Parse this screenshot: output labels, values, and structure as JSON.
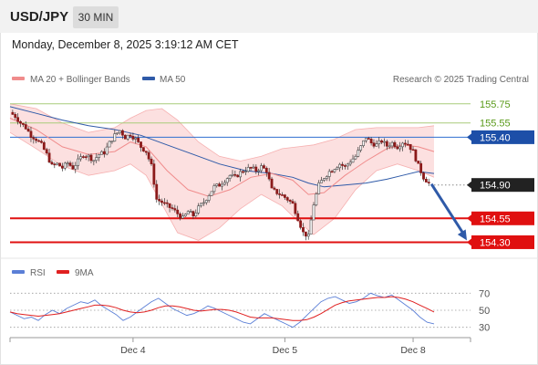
{
  "header": {
    "pair": "USD/JPY",
    "timeframe": "30 MIN"
  },
  "datetime": "Monday, December 8, 2025 3:19:12 AM CET",
  "legend": {
    "ma20": {
      "label": "MA 20 + Bollinger Bands",
      "color": "#f08c8c"
    },
    "ma50": {
      "label": "MA 50",
      "color": "#2f5aa8"
    }
  },
  "credit": "Research © 2025 Trading Central",
  "rsi_legend": {
    "rsi": {
      "label": "RSI",
      "color": "#5b7fd6"
    },
    "ma9": {
      "label": "9MA",
      "color": "#e02020"
    }
  },
  "chart_data": [
    {
      "type": "candlestick",
      "ylim": [
        154.18,
        155.92
      ],
      "x_ticks": [
        "Dec 4",
        "Dec 5",
        "Dec 8"
      ],
      "levels": [
        {
          "label": "155.75",
          "value": 155.75,
          "color": "#a8cc7a",
          "text_color": "#5a9a1a",
          "boxed": false
        },
        {
          "label": "155.55",
          "value": 155.55,
          "color": "#a8cc7a",
          "text_color": "#5a9a1a",
          "boxed": false
        },
        {
          "label": "155.40",
          "value": 155.4,
          "color": "#2f6fd0",
          "text_color": "#ffffff",
          "boxed": true,
          "box_color": "#1d4fa8"
        },
        {
          "label": "154.90",
          "value": 154.9,
          "color": "#888888",
          "text_color": "#ffffff",
          "boxed": true,
          "box_color": "#222222",
          "dotted": true
        },
        {
          "label": "154.55",
          "value": 154.55,
          "color": "#e01010",
          "text_color": "#ffffff",
          "boxed": true,
          "box_color": "#e01010"
        },
        {
          "label": "154.30",
          "value": 154.3,
          "color": "#e01010",
          "text_color": "#ffffff",
          "boxed": true,
          "box_color": "#e01010"
        }
      ],
      "last_price": 154.9,
      "forecast_arrow": {
        "from": 154.91,
        "to": 154.32,
        "color": "#2f5aa8"
      },
      "close_path": [
        [
          0,
          155.66
        ],
        [
          2,
          155.62
        ],
        [
          4,
          155.55
        ],
        [
          6,
          155.5
        ],
        [
          8,
          155.42
        ],
        [
          10,
          155.38
        ],
        [
          12,
          155.32
        ],
        [
          14,
          155.22
        ],
        [
          16,
          155.1
        ],
        [
          18,
          155.12
        ],
        [
          20,
          155.08
        ],
        [
          22,
          155.13
        ],
        [
          24,
          155.08
        ],
        [
          26,
          155.15
        ],
        [
          28,
          155.22
        ],
        [
          30,
          155.2
        ],
        [
          32,
          155.16
        ],
        [
          34,
          155.22
        ],
        [
          36,
          155.24
        ],
        [
          38,
          155.34
        ],
        [
          40,
          155.42
        ],
        [
          42,
          155.47
        ],
        [
          44,
          155.4
        ],
        [
          46,
          155.43
        ],
        [
          48,
          155.38
        ],
        [
          50,
          155.3
        ],
        [
          52,
          155.25
        ],
        [
          54,
          155.1
        ],
        [
          56,
          154.75
        ],
        [
          58,
          154.72
        ],
        [
          60,
          154.68
        ],
        [
          62,
          154.65
        ],
        [
          64,
          154.6
        ],
        [
          66,
          154.55
        ],
        [
          68,
          154.62
        ],
        [
          70,
          154.58
        ],
        [
          72,
          154.66
        ],
        [
          74,
          154.72
        ],
        [
          76,
          154.8
        ],
        [
          78,
          154.88
        ],
        [
          80,
          154.9
        ],
        [
          82,
          154.95
        ],
        [
          84,
          155.0
        ],
        [
          86,
          154.98
        ],
        [
          88,
          155.03
        ],
        [
          90,
          155.06
        ],
        [
          92,
          155.08
        ],
        [
          94,
          155.05
        ],
        [
          96,
          155.09
        ],
        [
          98,
          155.05
        ],
        [
          100,
          154.85
        ],
        [
          102,
          154.82
        ],
        [
          104,
          154.79
        ],
        [
          106,
          154.75
        ],
        [
          108,
          154.7
        ],
        [
          110,
          154.55
        ],
        [
          112,
          154.4
        ],
        [
          114,
          154.36
        ],
        [
          116,
          154.7
        ],
        [
          118,
          154.9
        ],
        [
          120,
          154.98
        ],
        [
          122,
          155.04
        ],
        [
          124,
          155.08
        ],
        [
          126,
          155.12
        ],
        [
          128,
          155.09
        ],
        [
          130,
          155.15
        ],
        [
          132,
          155.2
        ],
        [
          134,
          155.3
        ],
        [
          136,
          155.4
        ],
        [
          138,
          155.34
        ],
        [
          140,
          155.32
        ],
        [
          142,
          155.36
        ],
        [
          144,
          155.31
        ],
        [
          146,
          155.34
        ],
        [
          148,
          155.3
        ],
        [
          150,
          155.35
        ],
        [
          152,
          155.33
        ],
        [
          154,
          155.25
        ],
        [
          156,
          155.1
        ],
        [
          158,
          154.98
        ],
        [
          160,
          154.92
        ]
      ],
      "ma20_path": [
        [
          0,
          155.6
        ],
        [
          10,
          155.48
        ],
        [
          20,
          155.3
        ],
        [
          30,
          155.22
        ],
        [
          40,
          155.25
        ],
        [
          46,
          155.35
        ],
        [
          52,
          155.3
        ],
        [
          60,
          155.05
        ],
        [
          68,
          154.85
        ],
        [
          76,
          154.78
        ],
        [
          84,
          154.85
        ],
        [
          92,
          154.98
        ],
        [
          100,
          155.02
        ],
        [
          108,
          154.95
        ],
        [
          114,
          154.8
        ],
        [
          120,
          154.82
        ],
        [
          128,
          155.0
        ],
        [
          136,
          155.15
        ],
        [
          144,
          155.28
        ],
        [
          150,
          155.32
        ],
        [
          156,
          155.3
        ],
        [
          162,
          155.25
        ]
      ],
      "bb_upper_path": [
        [
          0,
          155.75
        ],
        [
          10,
          155.7
        ],
        [
          20,
          155.55
        ],
        [
          30,
          155.45
        ],
        [
          40,
          155.5
        ],
        [
          46,
          155.6
        ],
        [
          52,
          155.68
        ],
        [
          58,
          155.7
        ],
        [
          64,
          155.58
        ],
        [
          72,
          155.35
        ],
        [
          80,
          155.2
        ],
        [
          88,
          155.15
        ],
        [
          96,
          155.2
        ],
        [
          104,
          155.28
        ],
        [
          110,
          155.3
        ],
        [
          116,
          155.32
        ],
        [
          124,
          155.38
        ],
        [
          132,
          155.48
        ],
        [
          140,
          155.5
        ],
        [
          148,
          155.5
        ],
        [
          156,
          155.5
        ],
        [
          162,
          155.52
        ]
      ],
      "bb_lower_path": [
        [
          0,
          155.45
        ],
        [
          10,
          155.28
        ],
        [
          20,
          155.1
        ],
        [
          30,
          155.0
        ],
        [
          40,
          155.05
        ],
        [
          46,
          155.12
        ],
        [
          52,
          155.0
        ],
        [
          58,
          154.7
        ],
        [
          64,
          154.4
        ],
        [
          72,
          154.32
        ],
        [
          80,
          154.45
        ],
        [
          88,
          154.65
        ],
        [
          96,
          154.8
        ],
        [
          104,
          154.68
        ],
        [
          110,
          154.52
        ],
        [
          116,
          154.38
        ],
        [
          124,
          154.55
        ],
        [
          132,
          154.85
        ],
        [
          140,
          155.05
        ],
        [
          148,
          155.12
        ],
        [
          156,
          155.05
        ],
        [
          162,
          154.98
        ]
      ],
      "ma50_path": [
        [
          0,
          155.72
        ],
        [
          10,
          155.65
        ],
        [
          20,
          155.58
        ],
        [
          30,
          155.52
        ],
        [
          40,
          155.48
        ],
        [
          50,
          155.42
        ],
        [
          60,
          155.32
        ],
        [
          70,
          155.22
        ],
        [
          80,
          155.12
        ],
        [
          90,
          155.05
        ],
        [
          100,
          155.02
        ],
        [
          108,
          154.98
        ],
        [
          114,
          154.92
        ],
        [
          120,
          154.88
        ],
        [
          128,
          154.9
        ],
        [
          136,
          154.92
        ],
        [
          144,
          154.96
        ],
        [
          150,
          155.0
        ],
        [
          156,
          155.04
        ],
        [
          162,
          155.02
        ]
      ]
    },
    {
      "type": "line",
      "title": "",
      "ylim": [
        20,
        80
      ],
      "y_ticks": [
        70,
        50,
        30
      ],
      "series": [
        {
          "name": "RSI",
          "values": [
            48,
            44,
            40,
            42,
            38,
            45,
            50,
            46,
            52,
            56,
            60,
            58,
            62,
            55,
            50,
            45,
            38,
            42,
            48,
            54,
            60,
            64,
            58,
            52,
            48,
            44,
            46,
            50,
            55,
            52,
            48,
            44,
            40,
            36,
            34,
            40,
            46,
            42,
            38,
            34,
            30,
            36,
            44,
            52,
            60,
            64,
            66,
            62,
            58,
            60,
            64,
            70,
            67,
            65,
            68,
            62,
            56,
            50,
            42,
            36,
            34
          ]
        },
        {
          "name": "9MA",
          "values": [
            48,
            46,
            45,
            44,
            43,
            44,
            45,
            46,
            48,
            50,
            52,
            54,
            56,
            56,
            55,
            53,
            50,
            48,
            47,
            48,
            50,
            53,
            55,
            55,
            54,
            52,
            50,
            49,
            50,
            51,
            51,
            50,
            48,
            45,
            42,
            41,
            41,
            41,
            40,
            39,
            38,
            38,
            39,
            42,
            46,
            51,
            56,
            59,
            61,
            62,
            63,
            64,
            65,
            65,
            66,
            65,
            63,
            60,
            56,
            52,
            48
          ]
        }
      ]
    }
  ]
}
